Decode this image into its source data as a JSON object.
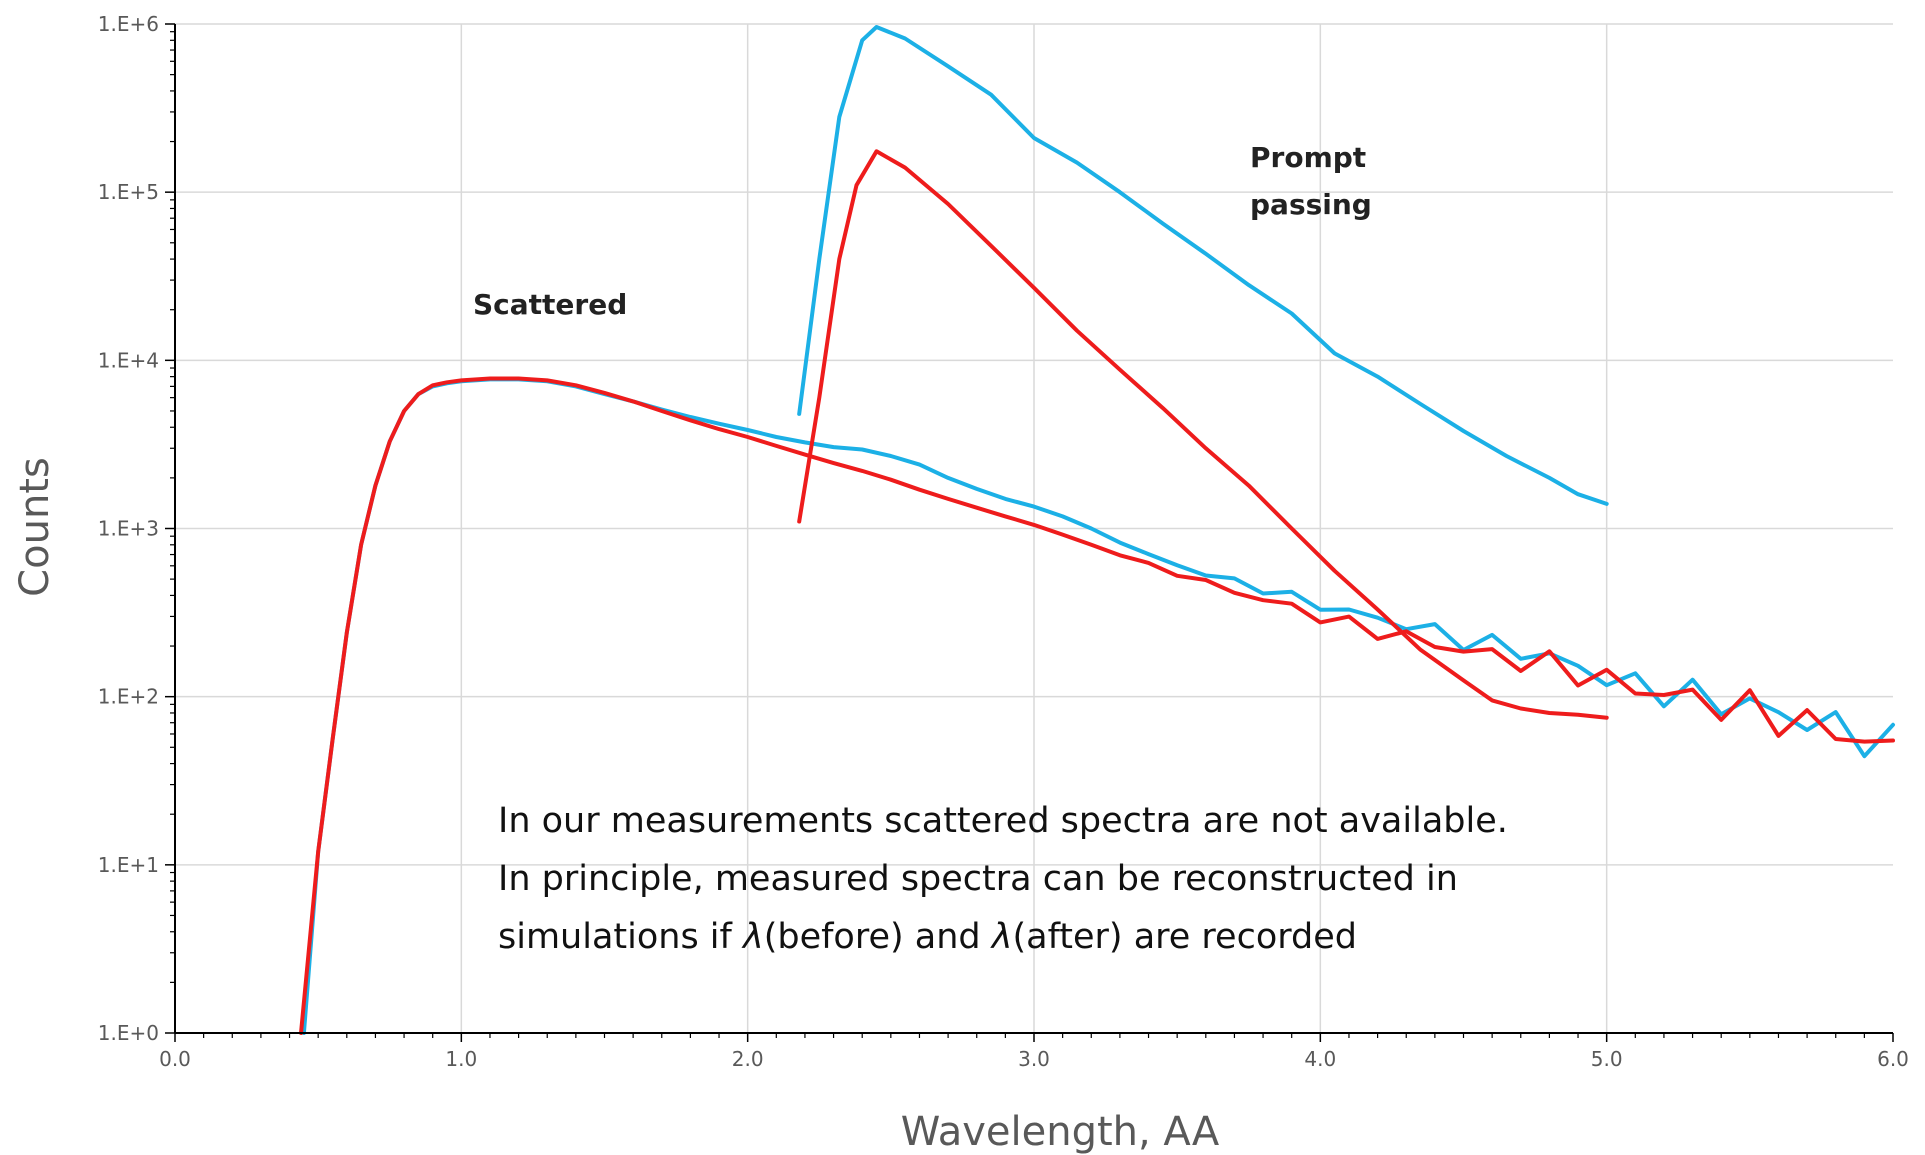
{
  "chart_data": {
    "type": "line",
    "xlabel": "Wavelength, AA",
    "ylabel": "Counts",
    "xlim": [
      0,
      6
    ],
    "ylim": [
      1,
      1000000
    ],
    "yscale": "log",
    "grid": true,
    "x_ticks": [
      "0.0",
      "1.0",
      "2.0",
      "3.0",
      "4.0",
      "5.0",
      "6.0"
    ],
    "y_ticks": [
      "1.E+0",
      "1.E+1",
      "1.E+2",
      "1.E+3",
      "1.E+4",
      "1.E+5",
      "1.E+6"
    ],
    "colors": {
      "blue": "#1cb0e6",
      "red": "#ee1c1c"
    },
    "annotations": {
      "scattered": "Scattered",
      "prompt_line1": "Prompt",
      "prompt_line2": "passing",
      "note_line1": "In our measurements scattered spectra are not available.",
      "note_line2": "In principle, measured spectra can be reconstructed in",
      "note_line3_pre": "simulations if ",
      "note_lambda": "λ",
      "note_line3_mid": "(before) and ",
      "note_line3_post": "(after) are recorded"
    },
    "series": [
      {
        "color": "blue",
        "style": "scattered",
        "x": [
          0.45,
          0.5,
          0.55,
          0.6,
          0.65,
          0.7,
          0.75,
          0.8,
          0.85,
          0.9,
          0.95,
          1.0,
          1.1,
          1.2,
          1.3,
          1.4,
          1.5,
          1.6,
          1.7,
          1.8,
          1.9,
          2.0,
          2.1,
          2.2,
          2.3,
          2.4,
          2.5,
          2.6,
          2.7,
          2.8,
          2.9,
          3.0,
          3.1,
          3.2,
          3.3,
          3.4,
          3.5,
          3.6,
          3.7,
          3.8,
          3.9,
          4.0,
          4.1,
          4.2,
          4.3,
          4.4,
          4.5,
          4.6,
          4.7,
          4.8,
          4.9,
          5.0,
          5.1,
          5.2,
          5.3,
          5.4,
          5.5,
          5.6,
          5.7,
          5.8,
          5.9,
          6.0
        ],
        "y": [
          1,
          12,
          55,
          240,
          800,
          1800,
          3300,
          5000,
          6300,
          7000,
          7300,
          7500,
          7700,
          7700,
          7500,
          7000,
          6300,
          5700,
          5100,
          4600,
          4200,
          3850,
          3500,
          3250,
          3050,
          2950,
          2700,
          2400,
          2000,
          1720,
          1500,
          1350,
          1180,
          1000,
          830,
          700,
          600,
          540,
          480,
          440,
          390,
          350,
          320,
          290,
          270,
          240,
          220,
          200,
          190,
          170,
          150,
          130,
          115,
          110,
          100,
          95,
          88,
          80,
          72,
          65,
          58,
          52
        ]
      },
      {
        "color": "red",
        "style": "scattered",
        "x": [
          0.44,
          0.5,
          0.55,
          0.6,
          0.65,
          0.7,
          0.75,
          0.8,
          0.85,
          0.9,
          0.95,
          1.0,
          1.1,
          1.2,
          1.3,
          1.4,
          1.5,
          1.6,
          1.7,
          1.8,
          1.9,
          2.0,
          2.1,
          2.2,
          2.3,
          2.4,
          2.5,
          2.6,
          2.7,
          2.8,
          2.9,
          3.0,
          3.1,
          3.2,
          3.3,
          3.4,
          3.5,
          3.6,
          3.7,
          3.8,
          3.9,
          4.0,
          4.1,
          4.2,
          4.3,
          4.4,
          4.5,
          4.6,
          4.7,
          4.8,
          4.9,
          5.0,
          5.1,
          5.2,
          5.3,
          5.4,
          5.5,
          5.6,
          5.7,
          5.8,
          5.9,
          6.0
        ],
        "y": [
          1,
          12,
          55,
          240,
          800,
          1800,
          3300,
          5000,
          6300,
          7100,
          7400,
          7600,
          7800,
          7800,
          7600,
          7100,
          6400,
          5700,
          5000,
          4400,
          3900,
          3500,
          3100,
          2750,
          2450,
          2200,
          1950,
          1700,
          1500,
          1330,
          1180,
          1050,
          920,
          800,
          700,
          610,
          540,
          480,
          420,
          380,
          340,
          300,
          270,
          245,
          225,
          205,
          190,
          175,
          165,
          155,
          140,
          125,
          112,
          105,
          97,
          90,
          84,
          76,
          68,
          62,
          55,
          48
        ]
      },
      {
        "color": "blue",
        "style": "prompt",
        "x": [
          2.18,
          2.25,
          2.32,
          2.4,
          2.45,
          2.55,
          2.7,
          2.85,
          3.0,
          3.15,
          3.3,
          3.45,
          3.6,
          3.75,
          3.9,
          4.05,
          4.2,
          4.35,
          4.5,
          4.65,
          4.8,
          4.9,
          5.0
        ],
        "y": [
          4800,
          40000,
          280000,
          800000,
          960000,
          820000,
          560000,
          380000,
          210000,
          150000,
          100000,
          65000,
          43000,
          28000,
          19000,
          11000,
          8000,
          5500,
          3800,
          2700,
          2000,
          1600,
          1400
        ]
      },
      {
        "color": "red",
        "style": "prompt",
        "x": [
          2.18,
          2.25,
          2.32,
          2.38,
          2.45,
          2.55,
          2.7,
          2.85,
          3.0,
          3.15,
          3.3,
          3.45,
          3.6,
          3.75,
          3.9,
          4.05,
          4.2,
          4.35,
          4.5,
          4.6,
          4.7,
          4.8,
          4.9,
          5.0
        ],
        "y": [
          1100,
          6000,
          40000,
          110000,
          175000,
          140000,
          85000,
          48000,
          27000,
          15000,
          8800,
          5200,
          3000,
          1800,
          1000,
          560,
          330,
          190,
          125,
          95,
          85,
          80,
          78,
          75
        ]
      }
    ]
  }
}
